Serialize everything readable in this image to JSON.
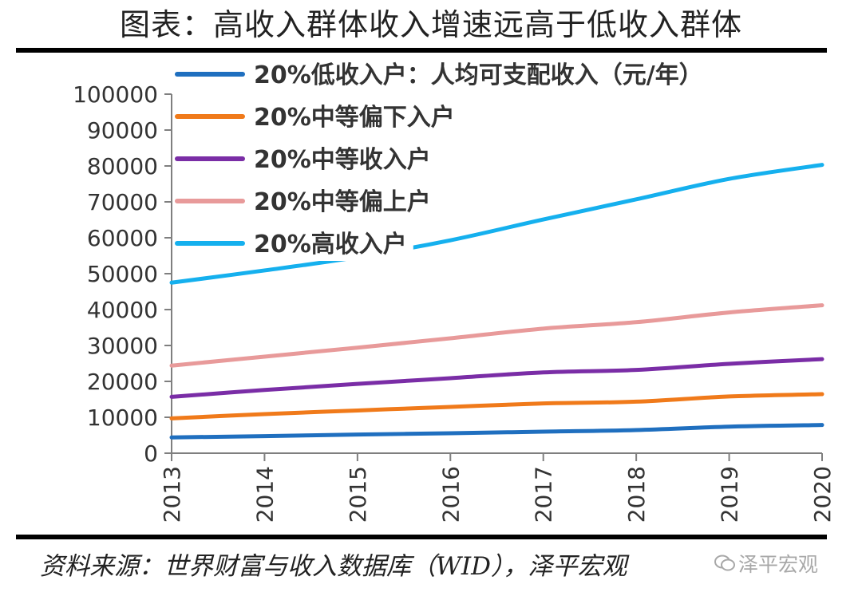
{
  "title": "图表：高收入群体收入增速远高于低收入群体",
  "source": "资料来源：世界财富与收入数据库（WID），泽平宏观",
  "watermark": "泽平宏观",
  "chart_data": {
    "type": "line",
    "x": [
      "2013",
      "2014",
      "2015",
      "2016",
      "2017",
      "2018",
      "2019",
      "2020"
    ],
    "ylim": [
      0,
      100000
    ],
    "yticks": [
      0,
      10000,
      20000,
      30000,
      40000,
      50000,
      60000,
      70000,
      80000,
      90000,
      100000
    ],
    "grid": false,
    "legend_position": "top-left",
    "series": [
      {
        "name": "20%低收入户：人均可支配收入（元/年）",
        "color": "#1f6fbf",
        "values": [
          4400,
          4750,
          5200,
          5550,
          6000,
          6450,
          7400,
          7850
        ]
      },
      {
        "name": "20%中等偏下入户",
        "color": "#f07a1a",
        "values": [
          9700,
          10900,
          11900,
          12900,
          13850,
          14350,
          15800,
          16450
        ]
      },
      {
        "name": "20%中等收入户",
        "color": "#7a2da6",
        "values": [
          15700,
          17600,
          19300,
          20900,
          22500,
          23200,
          24900,
          26200
        ]
      },
      {
        "name": "20%中等偏上户",
        "color": "#e89a9a",
        "values": [
          24400,
          26900,
          29400,
          32000,
          34700,
          36500,
          39200,
          41200
        ]
      },
      {
        "name": "20%高收入户",
        "color": "#15b0ee",
        "values": [
          47500,
          50900,
          54600,
          59300,
          65100,
          70700,
          76400,
          80300
        ]
      }
    ]
  }
}
